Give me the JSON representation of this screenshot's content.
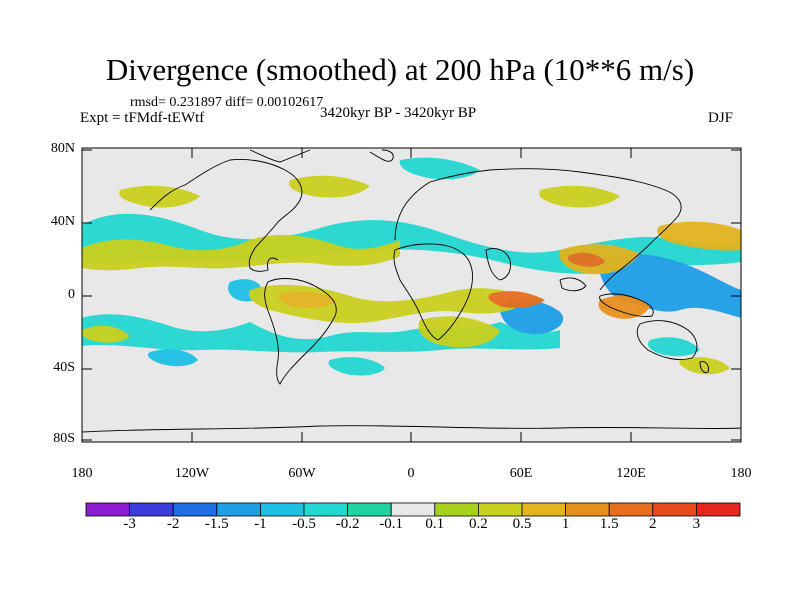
{
  "title": "Divergence (smoothed) at 200 hPa (10**6 m/s)",
  "stats": "rmsd= 0.231897  diff= 0.00102617",
  "experiment": "Expt = tFMdf-tEWtf",
  "period": "3420kyr BP - 3420kyr BP",
  "season": "DJF",
  "lat_ticks": [
    "80N",
    "40N",
    "0",
    "40S",
    "80S"
  ],
  "lon_ticks": [
    "180",
    "120W",
    "60W",
    "0",
    "60E",
    "120E",
    "180"
  ],
  "colorbar": {
    "labels": [
      "-3",
      "-2",
      "-1.5",
      "-1",
      "-0.5",
      "-0.2",
      "-0.1",
      "0.1",
      "0.2",
      "0.5",
      "1",
      "1.5",
      "2",
      "3"
    ],
    "colors": [
      "#8c1ed2",
      "#3c3cdc",
      "#1e6ee6",
      "#1e9fe6",
      "#1ec0e6",
      "#22d8d0",
      "#22d2a0",
      "#e8e8e8",
      "#a6d21e",
      "#cad01e",
      "#e2b41e",
      "#e8901e",
      "#e66e1e",
      "#e64a1e",
      "#e6261e"
    ]
  }
}
